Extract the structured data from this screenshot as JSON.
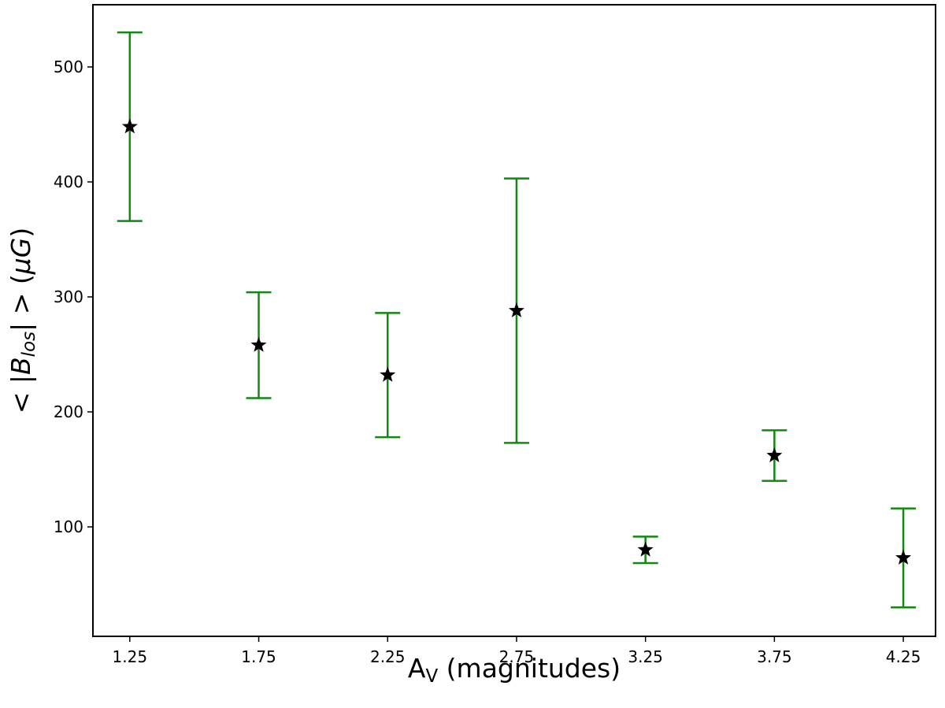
{
  "chart_data": {
    "type": "errorbar",
    "xlabel": [
      {
        "text": "A"
      },
      {
        "text": "V",
        "style": "sub"
      },
      {
        "text": " (magnitudes)"
      }
    ],
    "ylabel": [
      {
        "text": "< |"
      },
      {
        "text": "B",
        "style": "italic"
      },
      {
        "text": "los",
        "style": "italic-sub"
      },
      {
        "text": "| > ("
      },
      {
        "text": "μG",
        "style": "italic"
      },
      {
        "text": ")"
      }
    ],
    "x": [
      1.25,
      1.75,
      2.25,
      2.75,
      3.25,
      3.75,
      4.25
    ],
    "values": [
      448,
      258,
      232,
      288,
      80,
      162,
      73
    ],
    "errors": [
      82,
      46,
      54,
      115,
      11.5,
      22,
      43
    ],
    "marker_color": "#000000",
    "error_color": "#118811",
    "xlim": [
      1.107,
      4.375
    ],
    "ylim": [
      4.8,
      554.1
    ],
    "xticks": [
      1.25,
      1.75,
      2.25,
      2.75,
      3.25,
      3.75,
      4.25
    ],
    "yticks": [
      100,
      200,
      300,
      400,
      500
    ]
  }
}
